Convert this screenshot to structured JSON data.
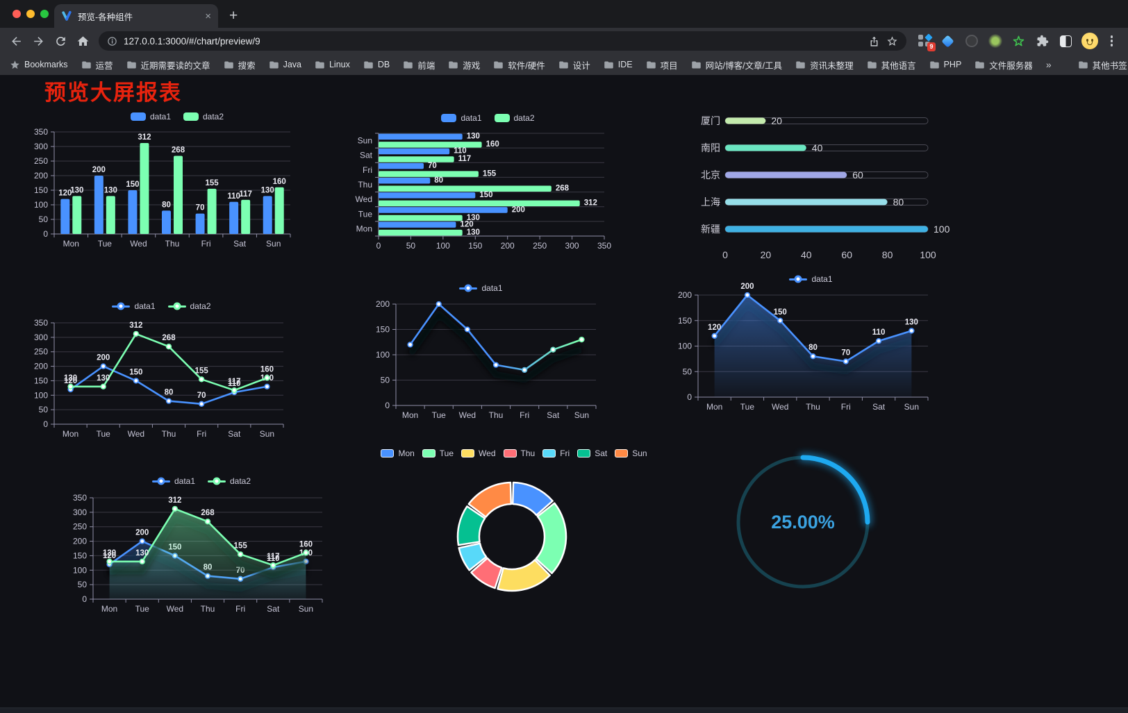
{
  "browser": {
    "tab_title": "预览-各种组件",
    "tab_close": "×",
    "new_tab": "+",
    "url": "127.0.0.1:3000/#/chart/preview/9",
    "bookmarks_label": "Bookmarks",
    "bookmarks": [
      "运营",
      "近期需要读的文章",
      "搜索",
      "Java",
      "Linux",
      "DB",
      "前端",
      "游戏",
      "软件/硬件",
      "设计",
      "IDE",
      "项目",
      "网站/博客/文章/工具",
      "资讯未整理",
      "其他语言",
      "PHP",
      "文件服务器"
    ],
    "bookmarks_overflow": "»",
    "other_bookmarks": "其他书签",
    "extension_badge": "9",
    "menu_dots": "⋮"
  },
  "page": {
    "title": "预览大屏报表",
    "title_color": "#e8230e"
  },
  "chart_data": [
    {
      "id": "grouped-bar",
      "type": "bar",
      "categories": [
        "Mon",
        "Tue",
        "Wed",
        "Thu",
        "Fri",
        "Sat",
        "Sun"
      ],
      "series": [
        {
          "name": "data1",
          "color": "#4992ff",
          "values": [
            120,
            200,
            150,
            80,
            70,
            110,
            130
          ]
        },
        {
          "name": "data2",
          "color": "#7cffb2",
          "values": [
            130,
            130,
            312,
            268,
            155,
            117,
            160
          ]
        }
      ],
      "legend": [
        "data1",
        "data2"
      ],
      "legend_position": "top",
      "ylim": [
        0,
        350
      ],
      "ytick_step": 50,
      "show_labels": true,
      "grid": true
    },
    {
      "id": "horizontal-bar",
      "type": "bar-horizontal",
      "categories": [
        "Mon",
        "Tue",
        "Wed",
        "Thu",
        "Fri",
        "Sat",
        "Sun"
      ],
      "categories_axis_order": "Mon at bottom, Sun at top",
      "series": [
        {
          "name": "data1",
          "color": "#4992ff",
          "values": [
            120,
            200,
            150,
            80,
            70,
            110,
            130
          ]
        },
        {
          "name": "data2",
          "color": "#7cffb2",
          "values": [
            130,
            130,
            312,
            268,
            155,
            117,
            160
          ]
        }
      ],
      "legend": [
        "data1",
        "data2"
      ],
      "legend_position": "top",
      "xlim": [
        0,
        350
      ],
      "xtick_step": 50,
      "xticks": [
        0,
        50,
        100,
        150,
        200,
        250,
        300,
        350
      ],
      "show_labels": true,
      "grid": true
    },
    {
      "id": "city-progress",
      "type": "bar-horizontal-progress",
      "rows": [
        {
          "label": "厦门",
          "value": 20,
          "color": "#c4ebad"
        },
        {
          "label": "南阳",
          "value": 40,
          "color": "#6be6c1"
        },
        {
          "label": "北京",
          "value": 60,
          "color": "#a0a7e6"
        },
        {
          "label": "上海",
          "value": 80,
          "color": "#96dee8"
        },
        {
          "label": "新疆",
          "value": 100,
          "color": "#3fb1e3"
        }
      ],
      "xlim": [
        0,
        100
      ],
      "xticks": [
        0,
        20,
        40,
        60,
        80,
        100
      ],
      "show_labels": true
    },
    {
      "id": "line-two-series",
      "type": "line",
      "categories": [
        "Mon",
        "Tue",
        "Wed",
        "Thu",
        "Fri",
        "Sat",
        "Sun"
      ],
      "series": [
        {
          "name": "data1",
          "color": "#4992ff",
          "values": [
            120,
            200,
            150,
            80,
            70,
            110,
            130
          ]
        },
        {
          "name": "data2",
          "color": "#7cffb2",
          "values": [
            130,
            130,
            312,
            268,
            155,
            117,
            160
          ]
        }
      ],
      "legend": [
        "data1",
        "data2"
      ],
      "legend_position": "top",
      "ylim": [
        0,
        350
      ],
      "ytick_step": 50,
      "show_labels": true,
      "grid": true
    },
    {
      "id": "line-gradient-shadow",
      "type": "line",
      "categories": [
        "Mon",
        "Tue",
        "Wed",
        "Thu",
        "Fri",
        "Sat",
        "Sun"
      ],
      "series": [
        {
          "name": "data1",
          "color_gradient": [
            "#4992ff",
            "#7cffb2"
          ],
          "values": [
            120,
            200,
            150,
            80,
            70,
            110,
            130
          ]
        }
      ],
      "legend": [
        "data1"
      ],
      "legend_position": "top",
      "ylim": [
        0,
        200
      ],
      "ytick_step": 50,
      "show_labels": false,
      "shadow": true,
      "grid": true
    },
    {
      "id": "area-single",
      "type": "area",
      "categories": [
        "Mon",
        "Tue",
        "Wed",
        "Thu",
        "Fri",
        "Sat",
        "Sun"
      ],
      "series": [
        {
          "name": "data1",
          "color": "#4992ff",
          "area": true,
          "values": [
            120,
            200,
            150,
            80,
            70,
            110,
            130
          ]
        }
      ],
      "legend": [
        "data1"
      ],
      "legend_position": "top",
      "ylim": [
        0,
        200
      ],
      "ytick_step": 50,
      "show_labels": true,
      "shadow": true,
      "grid": true
    },
    {
      "id": "area-two-series",
      "type": "area",
      "categories": [
        "Mon",
        "Tue",
        "Wed",
        "Thu",
        "Fri",
        "Sat",
        "Sun"
      ],
      "series": [
        {
          "name": "data1",
          "color": "#4992ff",
          "area": true,
          "values": [
            120,
            200,
            150,
            80,
            70,
            110,
            130
          ]
        },
        {
          "name": "data2",
          "color": "#7cffb2",
          "area": true,
          "values": [
            130,
            130,
            312,
            268,
            155,
            117,
            160
          ]
        }
      ],
      "legend": [
        "data1",
        "data2"
      ],
      "legend_position": "top",
      "ylim": [
        0,
        350
      ],
      "ytick_step": 50,
      "show_labels": true,
      "shadow": true,
      "grid": true
    },
    {
      "id": "donut",
      "type": "pie",
      "categories": [
        "Mon",
        "Tue",
        "Wed",
        "Thu",
        "Fri",
        "Sat",
        "Sun"
      ],
      "values": [
        120,
        200,
        150,
        80,
        70,
        110,
        130
      ],
      "colors": [
        "#4992ff",
        "#7cffb2",
        "#fddd60",
        "#ff6e76",
        "#58d9f9",
        "#05c091",
        "#ff8a45"
      ],
      "legend": [
        "Mon",
        "Tue",
        "Wed",
        "Thu",
        "Fri",
        "Sat",
        "Sun"
      ],
      "legend_position": "top",
      "inner_radius_ratio": 0.6,
      "border_color": "#ffffff",
      "start_angle_deg": 0,
      "clockwise": true
    },
    {
      "id": "gauge",
      "type": "gauge",
      "value_percent": 25,
      "label": "25.00%",
      "progress_color": "#1ea9f0",
      "track_color": "#16424f",
      "text_color": "#3ba2e0",
      "start": "top",
      "direction": "clockwise"
    }
  ]
}
